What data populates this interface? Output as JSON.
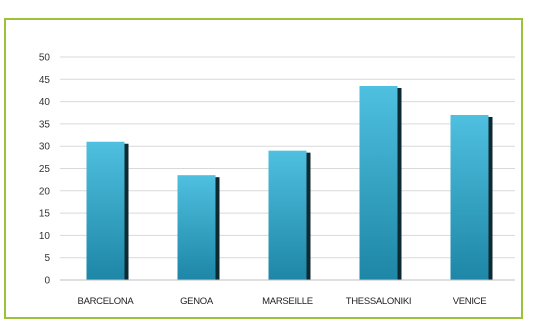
{
  "chart_data": {
    "type": "bar",
    "categories": [
      "BARCELONA",
      "GENOA",
      "MARSEILLE",
      "THESSALONIKI",
      "VENICE"
    ],
    "values": [
      31,
      23.5,
      29,
      43.5,
      37
    ],
    "ylim": [
      0,
      50
    ],
    "yticks": [
      0,
      5,
      10,
      15,
      20,
      25,
      30,
      35,
      40,
      45,
      50
    ],
    "grid": true,
    "legend": "none",
    "colors": {
      "bar_light": "#4fc0e0",
      "bar_dark": "#1e86a6",
      "bar_shadow": "#0d2a33",
      "grid": "#d9d9d9",
      "frame": "#9cc13a"
    }
  }
}
